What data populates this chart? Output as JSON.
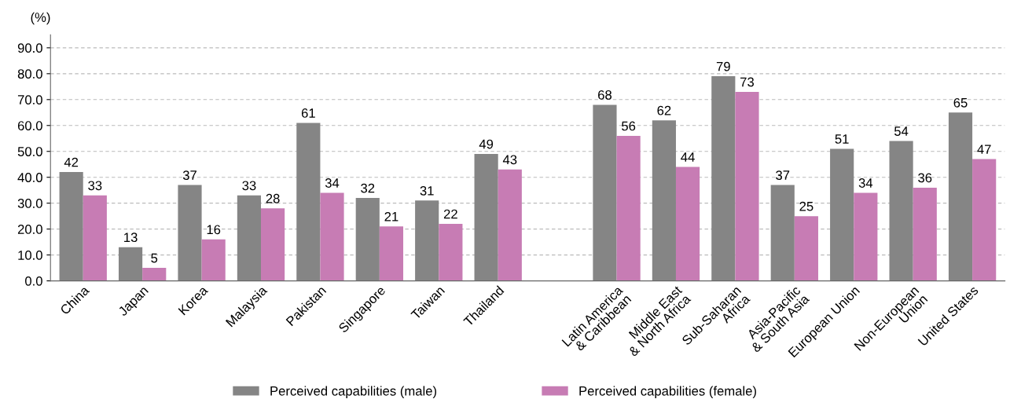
{
  "chart_data": {
    "type": "bar",
    "ylabel": "(%)",
    "categories": [
      "China",
      "Japan",
      "Korea",
      "Malaysia",
      "Pakistan",
      "Singapore",
      "Taiwan",
      "Thailand",
      null,
      "Latin America\n& Caribbean",
      "Middle East\n& North Africa",
      "Sub-Saharan\nAfrica",
      "Asia-Pacific\n& South Asia",
      "European Union",
      "Non-European\nUnion",
      "United States"
    ],
    "series": [
      {
        "name": "Perceived capabilities (male)",
        "color": "#858585",
        "values": [
          42,
          13,
          37,
          33,
          61,
          32,
          31,
          49,
          null,
          68,
          62,
          79,
          37,
          51,
          54,
          65
        ]
      },
      {
        "name": "Perceived capabilities (female)",
        "color": "#c77cb4",
        "values": [
          33,
          5,
          16,
          28,
          34,
          21,
          22,
          43,
          null,
          56,
          44,
          73,
          25,
          34,
          36,
          47
        ]
      }
    ],
    "data_labels": true,
    "ylim": [
      0,
      95
    ],
    "yticks": [
      {
        "value": 0,
        "label": "0.0"
      },
      {
        "value": 10,
        "label": "10.0"
      },
      {
        "value": 20,
        "label": "20.0"
      },
      {
        "value": 30,
        "label": "30.0"
      },
      {
        "value": 40,
        "label": "40.0"
      },
      {
        "value": 50,
        "label": "50.0"
      },
      {
        "value": 60,
        "label": "60.0"
      },
      {
        "value": 70,
        "label": "70.0"
      },
      {
        "value": 80,
        "label": "80.0"
      },
      {
        "value": 90,
        "label": "90.0"
      }
    ],
    "grid": "y",
    "legend": "bottom"
  }
}
